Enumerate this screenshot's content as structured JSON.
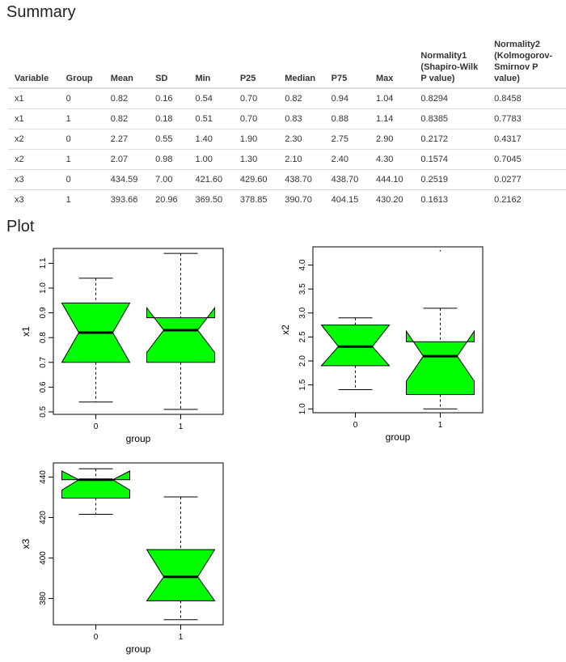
{
  "headings": {
    "summary": "Summary",
    "plot": "Plot"
  },
  "table": {
    "columns": [
      "Variable",
      "Group",
      "Mean",
      "SD",
      "Min",
      "P25",
      "Median",
      "P75",
      "Max",
      "Normality1 (Shapiro-Wilk P value)",
      "Normality2 (Kolmogorov-Smirnov P value)"
    ],
    "rows": [
      [
        "x1",
        "0",
        "0.82",
        "0.16",
        "0.54",
        "0.70",
        "0.82",
        "0.94",
        "1.04",
        "0.8294",
        "0.8458"
      ],
      [
        "x1",
        "1",
        "0.82",
        "0.18",
        "0.51",
        "0.70",
        "0.83",
        "0.88",
        "1.14",
        "0.8385",
        "0.7783"
      ],
      [
        "x2",
        "0",
        "2.27",
        "0.55",
        "1.40",
        "1.90",
        "2.30",
        "2.75",
        "2.90",
        "0.2172",
        "0.4317"
      ],
      [
        "x2",
        "1",
        "2.07",
        "0.98",
        "1.00",
        "1.30",
        "2.10",
        "2.40",
        "4.30",
        "0.1574",
        "0.7045"
      ],
      [
        "x3",
        "0",
        "434.59",
        "7.00",
        "421.60",
        "429.60",
        "438.70",
        "438.70",
        "444.10",
        "0.2519",
        "0.0277"
      ],
      [
        "x3",
        "1",
        "393.66",
        "20.96",
        "369.50",
        "378.85",
        "390.70",
        "404.15",
        "430.20",
        "0.1613",
        "0.2162"
      ]
    ]
  },
  "chart_data": [
    {
      "type": "box",
      "xlabel": "group",
      "ylabel": "x1",
      "categories": [
        "0",
        "1"
      ],
      "yticks": [
        "0.5",
        "0.6",
        "0.7",
        "0.8",
        "0.9",
        "1.0",
        "1.1"
      ],
      "ylim": [
        0.49,
        1.16
      ],
      "fill": "#00ff00",
      "boxes": [
        {
          "whisker_low": 0.54,
          "q1": 0.7,
          "median": 0.82,
          "q3": 0.94,
          "whisker_high": 1.04,
          "notch_low": 0.7,
          "notch_high": 0.94,
          "outliers": []
        },
        {
          "whisker_low": 0.51,
          "q1": 0.7,
          "median": 0.83,
          "q3": 0.88,
          "whisker_high": 1.14,
          "notch_low": 0.74,
          "notch_high": 0.92,
          "outliers": []
        }
      ]
    },
    {
      "type": "box",
      "xlabel": "group",
      "ylabel": "x2",
      "categories": [
        "0",
        "1"
      ],
      "yticks": [
        "1.0",
        "1.5",
        "2.0",
        "2.5",
        "3.0",
        "3.5",
        "4.0"
      ],
      "ylim": [
        0.92,
        4.38
      ],
      "fill": "#00ff00",
      "boxes": [
        {
          "whisker_low": 1.4,
          "q1": 1.9,
          "median": 2.3,
          "q3": 2.75,
          "whisker_high": 2.9,
          "notch_low": 1.9,
          "notch_high": 2.75,
          "outliers": []
        },
        {
          "whisker_low": 1.0,
          "q1": 1.3,
          "median": 2.1,
          "q3": 2.4,
          "whisker_high": 3.1,
          "notch_low": 1.58,
          "notch_high": 2.62,
          "outliers": [
            4.3
          ]
        }
      ]
    },
    {
      "type": "box",
      "xlabel": "group",
      "ylabel": "x3",
      "categories": [
        "0",
        "1"
      ],
      "yticks": [
        "380",
        "400",
        "420",
        "440"
      ],
      "ylim": [
        367.0,
        447.0
      ],
      "fill": "#00ff00",
      "boxes": [
        {
          "whisker_low": 421.6,
          "q1": 429.6,
          "median": 438.7,
          "q3": 438.7,
          "whisker_high": 444.1,
          "notch_low": 433.6,
          "notch_high": 443.0,
          "outliers": []
        },
        {
          "whisker_low": 369.5,
          "q1": 378.85,
          "median": 390.7,
          "q3": 404.15,
          "whisker_high": 430.2,
          "notch_low": 378.85,
          "notch_high": 404.15,
          "outliers": []
        }
      ]
    }
  ]
}
